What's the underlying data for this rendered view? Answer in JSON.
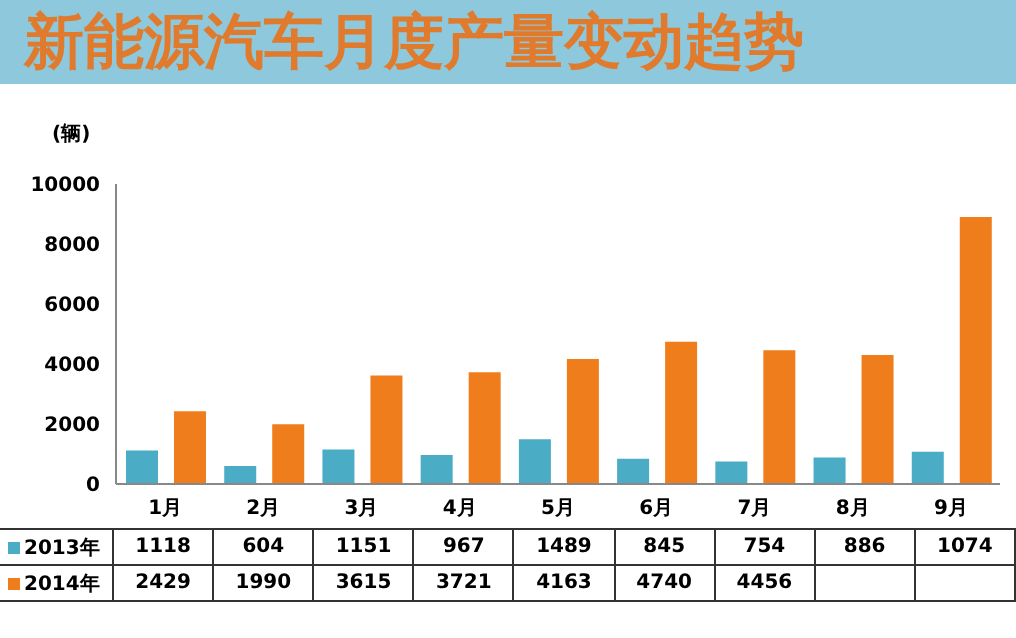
{
  "chart_data": {
    "type": "bar",
    "title": "新能源汽车月度产量变动趋势",
    "ylabel": "(辆)",
    "categories": [
      "1月",
      "2月",
      "3月",
      "4月",
      "5月",
      "6月",
      "7月",
      "8月",
      "9月"
    ],
    "series": [
      {
        "name": "2013年",
        "color": "#4bacc6",
        "values": [
          1118,
          604,
          1151,
          967,
          1489,
          845,
          754,
          886,
          1074
        ],
        "value_labels": [
          "1118",
          "604",
          "1151",
          "967",
          "1489",
          "845",
          "754",
          "886",
          "1074"
        ]
      },
      {
        "name": "2014年",
        "color": "#f07d1c",
        "values": [
          2429,
          1990,
          3615,
          3721,
          4163,
          4740,
          4456,
          4300,
          8900
        ],
        "value_labels": [
          "2429",
          "1990",
          "3615",
          "3721",
          "4163",
          "4740",
          "4456",
          null,
          null
        ]
      }
    ],
    "ylim": [
      0,
      10000
    ],
    "yticks": [
      0,
      2000,
      4000,
      6000,
      8000,
      10000
    ],
    "legend": "bottom"
  }
}
